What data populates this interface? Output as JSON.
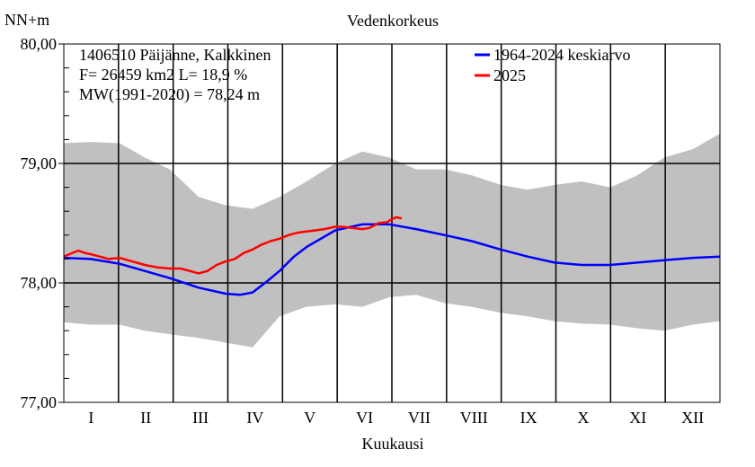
{
  "chart_data": {
    "type": "line",
    "title": "Vedenkorkeus",
    "ylabel": "NN+m",
    "xlabel": "Kuukausi",
    "ylim": [
      77.0,
      80.0
    ],
    "y_ticks": [
      "77,00",
      "78,00",
      "79,00",
      "80,00"
    ],
    "y_tick_values": [
      77.0,
      78.0,
      79.0,
      80.0
    ],
    "x_range_days": [
      0,
      365
    ],
    "months": [
      "I",
      "II",
      "III",
      "IV",
      "V",
      "VI",
      "VII",
      "VIII",
      "IX",
      "X",
      "XI",
      "XII"
    ],
    "info_lines": [
      "1406510 Päijänne, Kalkkinen",
      "F=  26459 km2 L=  18,9 %",
      "MW(1991-2020) = 78,24 m"
    ],
    "legend": [
      {
        "label": "1964-2024 keskiarvo",
        "color": "#0000ff"
      },
      {
        "label": "2025",
        "color": "#ff0000"
      }
    ],
    "grid": true,
    "band": {
      "name": "min-max range",
      "color": "#c0c0c0",
      "x": [
        0,
        15,
        31,
        45,
        59,
        75,
        90,
        105,
        120,
        135,
        151,
        166,
        181,
        196,
        212,
        227,
        243,
        258,
        273,
        288,
        304,
        319,
        334,
        350,
        365
      ],
      "upper": [
        79.17,
        79.18,
        79.17,
        79.05,
        78.95,
        78.72,
        78.65,
        78.62,
        78.72,
        78.85,
        79.0,
        79.1,
        79.05,
        78.95,
        78.95,
        78.9,
        78.82,
        78.78,
        78.82,
        78.85,
        78.8,
        78.9,
        79.05,
        79.12,
        79.25
      ],
      "lower": [
        77.67,
        77.65,
        77.65,
        77.6,
        77.57,
        77.54,
        77.5,
        77.46,
        77.72,
        77.8,
        77.82,
        77.8,
        77.88,
        77.9,
        77.83,
        77.8,
        77.75,
        77.72,
        77.68,
        77.66,
        77.65,
        77.62,
        77.6,
        77.65,
        77.68
      ]
    },
    "series": [
      {
        "name": "1964-2024 keskiarvo",
        "color": "#0000ff",
        "x": [
          0,
          15,
          31,
          45,
          59,
          75,
          90,
          98,
          105,
          112,
          120,
          128,
          135,
          151,
          166,
          181,
          196,
          212,
          227,
          243,
          258,
          273,
          288,
          304,
          319,
          334,
          350,
          365
        ],
        "values": [
          78.21,
          78.2,
          78.16,
          78.1,
          78.04,
          77.96,
          77.91,
          77.9,
          77.92,
          78.0,
          78.1,
          78.22,
          78.3,
          78.44,
          78.49,
          78.49,
          78.45,
          78.4,
          78.35,
          78.28,
          78.22,
          78.17,
          78.15,
          78.15,
          78.17,
          78.19,
          78.21,
          78.22
        ]
      },
      {
        "name": "2025",
        "color": "#ff0000",
        "x": [
          0,
          3,
          8,
          12,
          15,
          20,
          25,
          31,
          38,
          45,
          52,
          59,
          65,
          70,
          75,
          80,
          85,
          90,
          95,
          100,
          105,
          110,
          115,
          120,
          125,
          130,
          135,
          140,
          145,
          151,
          155,
          160,
          166,
          170,
          175,
          180,
          182,
          185,
          188
        ],
        "values": [
          78.22,
          78.24,
          78.27,
          78.25,
          78.24,
          78.22,
          78.2,
          78.21,
          78.18,
          78.15,
          78.13,
          78.12,
          78.12,
          78.1,
          78.08,
          78.1,
          78.15,
          78.18,
          78.2,
          78.25,
          78.28,
          78.32,
          78.35,
          78.37,
          78.4,
          78.42,
          78.43,
          78.44,
          78.45,
          78.47,
          78.47,
          78.46,
          78.45,
          78.46,
          78.5,
          78.51,
          78.53,
          78.55,
          78.54
        ]
      }
    ]
  }
}
